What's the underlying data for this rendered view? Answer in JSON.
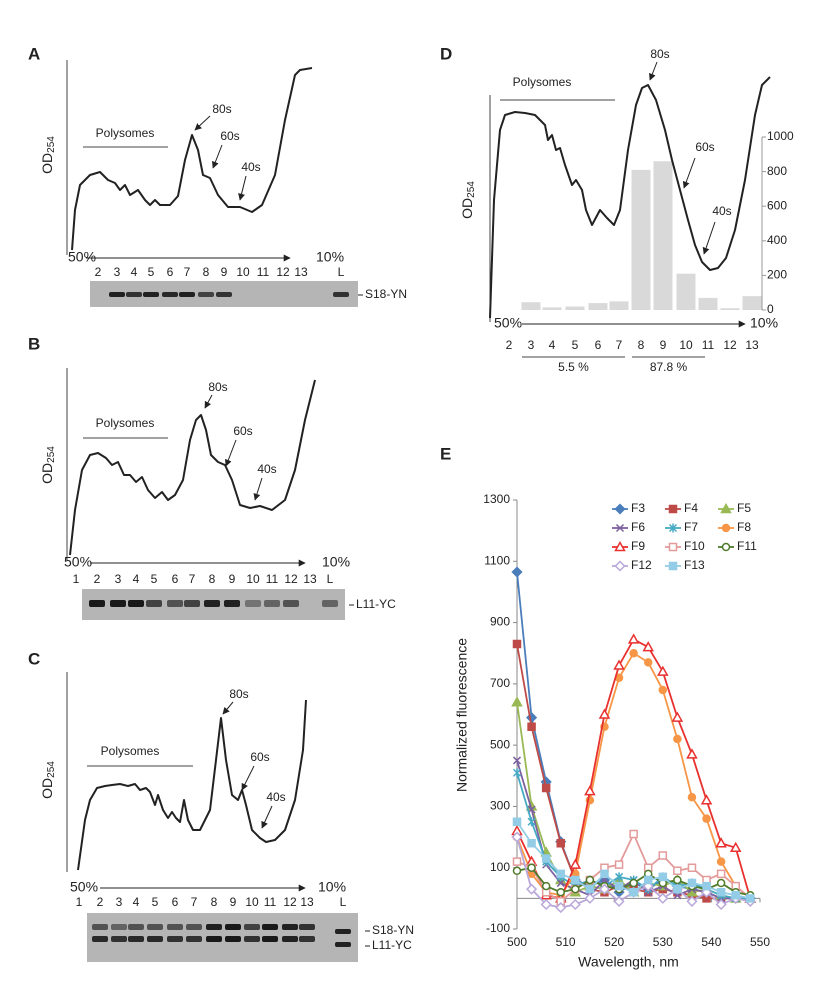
{
  "panels": [
    {
      "label": "A",
      "y_label": "OD",
      "y_label_sub": "254",
      "annotations": [
        "Polysomes",
        "80s",
        "60s",
        "40s"
      ],
      "gradient": [
        "50%",
        "10%"
      ],
      "fractions": [
        "2",
        "3",
        "4",
        "5",
        "6",
        "7",
        "8",
        "9",
        "10",
        "11",
        "12",
        "13",
        "L"
      ],
      "bands": [
        "S18-YN"
      ]
    },
    {
      "label": "B",
      "y_label": "OD",
      "y_label_sub": "254",
      "annotations": [
        "Polysomes",
        "80s",
        "60s",
        "40s"
      ],
      "gradient": [
        "50%",
        "10%"
      ],
      "fractions": [
        "1",
        "2",
        "3",
        "4",
        "5",
        "6",
        "7",
        "8",
        "9",
        "10",
        "11",
        "12",
        "13",
        "L"
      ],
      "bands": [
        "L11-YC"
      ]
    },
    {
      "label": "C",
      "y_label": "OD",
      "y_label_sub": "254",
      "annotations": [
        "Polysomes",
        "80s",
        "60s",
        "40s"
      ],
      "gradient": [
        "50%",
        "10%"
      ],
      "fractions": [
        "1",
        "2",
        "3",
        "4",
        "5",
        "6",
        "7",
        "8",
        "9",
        "10",
        "11",
        "12",
        "13",
        "L"
      ],
      "bands": [
        "S18-YN",
        "L11-YC"
      ]
    }
  ],
  "chart_data": [
    {
      "type": "bar",
      "label": "D",
      "y_label": "OD",
      "y_label_sub": "254",
      "annotations": [
        "Polysomes",
        "80s",
        "60s",
        "40s"
      ],
      "gradient": [
        "50%",
        "10%"
      ],
      "categories": [
        "2",
        "3",
        "4",
        "5",
        "6",
        "7",
        "8",
        "9",
        "10",
        "11",
        "12",
        "13"
      ],
      "values": [
        null,
        45,
        15,
        20,
        40,
        50,
        810,
        860,
        210,
        70,
        10,
        80
      ],
      "color": "#d9d9d9",
      "ylim": [
        0,
        1000
      ],
      "yticks": [
        0,
        200,
        400,
        600,
        800,
        1000
      ],
      "groups": [
        "5.5 %",
        "87.8 %"
      ]
    },
    {
      "type": "line",
      "label": "E",
      "x_label": "Wavelength, nm",
      "y_label": "Normalized fluorescence",
      "x": [
        500,
        503,
        506,
        509,
        512,
        515,
        518,
        521,
        524,
        527,
        530,
        533,
        536,
        539,
        542,
        545,
        548
      ],
      "xlim": [
        500,
        550
      ],
      "xticks": [
        500,
        510,
        520,
        530,
        540,
        550
      ],
      "ylim": [
        -100,
        1300
      ],
      "yticks": [
        -100,
        100,
        300,
        500,
        700,
        900,
        1100,
        1300
      ],
      "series": [
        {
          "name": "F3",
          "color": "#4a7ebb",
          "marker": "diamond",
          "values": [
            1065,
            590,
            380,
            185,
            60,
            40,
            60,
            20,
            50,
            30,
            60,
            40,
            30,
            20,
            0,
            0,
            0
          ]
        },
        {
          "name": "F4",
          "color": "#be4b48",
          "marker": "square",
          "values": [
            830,
            560,
            360,
            180,
            60,
            30,
            20,
            40,
            30,
            20,
            30,
            20,
            10,
            0,
            0,
            0,
            0
          ]
        },
        {
          "name": "F5",
          "color": "#98b954",
          "marker": "triangle",
          "values": [
            640,
            300,
            150,
            60,
            20,
            40,
            30,
            60,
            20,
            50,
            40,
            60,
            20,
            30,
            10,
            0,
            0
          ]
        },
        {
          "name": "F6",
          "color": "#7d60a0",
          "marker": "cross",
          "values": [
            450,
            290,
            110,
            50,
            30,
            10,
            60,
            30,
            60,
            20,
            40,
            10,
            30,
            20,
            0,
            0,
            0
          ]
        },
        {
          "name": "F7",
          "color": "#46aac4",
          "marker": "star",
          "values": [
            410,
            250,
            120,
            70,
            40,
            60,
            40,
            70,
            60,
            30,
            70,
            40,
            50,
            30,
            10,
            0,
            0
          ]
        },
        {
          "name": "F8",
          "color": "#f79646",
          "marker": "circle",
          "values": [
            200,
            80,
            20,
            10,
            80,
            320,
            560,
            720,
            800,
            770,
            680,
            520,
            330,
            260,
            120,
            40,
            0
          ]
        },
        {
          "name": "F9",
          "color": "#e8312f",
          "marker": "triangle-open",
          "values": [
            220,
            120,
            10,
            0,
            110,
            350,
            600,
            760,
            845,
            820,
            740,
            590,
            470,
            320,
            180,
            165,
            0
          ]
        },
        {
          "name": "F10",
          "color": "#e39a9a",
          "marker": "square-open",
          "values": [
            120,
            100,
            20,
            -10,
            30,
            60,
            100,
            110,
            210,
            100,
            140,
            90,
            100,
            60,
            80,
            40,
            0
          ]
        },
        {
          "name": "F11",
          "color": "#4f7a2a",
          "marker": "circle-open",
          "values": [
            90,
            100,
            40,
            20,
            30,
            60,
            40,
            30,
            50,
            80,
            50,
            60,
            40,
            30,
            50,
            20,
            10
          ]
        },
        {
          "name": "F12",
          "color": "#b9a8d9",
          "marker": "diamond-open",
          "values": [
            200,
            30,
            -20,
            -30,
            -20,
            0,
            30,
            -10,
            20,
            40,
            0,
            30,
            -10,
            20,
            -20,
            0,
            -10
          ]
        },
        {
          "name": "F13",
          "color": "#93cce6",
          "marker": "square",
          "values": [
            250,
            180,
            130,
            80,
            60,
            30,
            80,
            40,
            20,
            60,
            70,
            30,
            50,
            40,
            20,
            10,
            0
          ]
        }
      ]
    }
  ]
}
